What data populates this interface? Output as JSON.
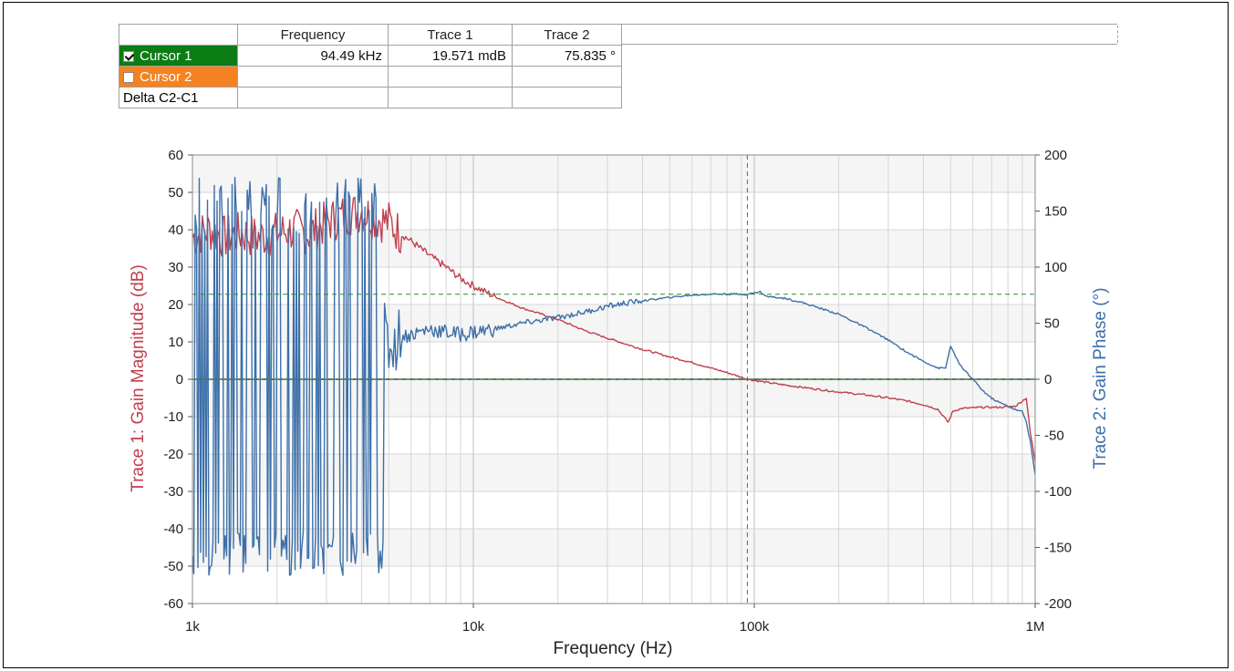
{
  "cursor_table": {
    "headers": [
      "",
      "Frequency",
      "Trace 1",
      "Trace 2"
    ],
    "rows": [
      {
        "label": "Cursor 1",
        "checked": true,
        "color": "#0b7d14",
        "frequency": "94.49 kHz",
        "trace1": "19.571 mdB",
        "trace2": "75.835 °"
      },
      {
        "label": "Cursor 2",
        "checked": false,
        "color": "#f58220",
        "frequency": "",
        "trace1": "",
        "trace2": ""
      },
      {
        "label": "Delta C2-C1",
        "checked": null,
        "color": "",
        "frequency": "",
        "trace1": "",
        "trace2": ""
      }
    ]
  },
  "chart_data": {
    "type": "line",
    "xlabel": "Frequency (Hz)",
    "x_scale": "log",
    "xlim": [
      1000,
      1000000
    ],
    "x_ticks": [
      {
        "v": 1000,
        "label": "1k"
      },
      {
        "v": 10000,
        "label": "10k"
      },
      {
        "v": 100000,
        "label": "100k"
      },
      {
        "v": 1000000,
        "label": "1M"
      }
    ],
    "y_left": {
      "label": "Trace 1: Gain Magnitude (dB)",
      "lim": [
        -60,
        60
      ],
      "ticks": [
        60,
        50,
        40,
        30,
        20,
        10,
        0,
        -10,
        -20,
        -30,
        -40,
        -50,
        -60
      ],
      "color": "#c0404e"
    },
    "y_right": {
      "label": "Trace 2: Gain Phase (°)",
      "lim": [
        -200,
        200
      ],
      "ticks": [
        200,
        150,
        100,
        50,
        0,
        -50,
        -100,
        -150,
        -200
      ],
      "color": "#3d6fa8"
    },
    "grid": true,
    "cursor": {
      "frequency": 94490,
      "magnitude": 0.019571,
      "phase": 75.835
    },
    "series": [
      {
        "name": "Trace 1",
        "axis": "left",
        "color": "#c0404e",
        "x": [
          1000,
          1150,
          1300,
          1500,
          1700,
          2000,
          2300,
          2600,
          3000,
          3500,
          4000,
          4500,
          5000,
          5500,
          6000,
          7000,
          8000,
          9000,
          10000,
          12000,
          15000,
          20000,
          25000,
          30000,
          40000,
          50000,
          60000,
          70000,
          80000,
          94490,
          110000,
          130000,
          150000,
          200000,
          250000,
          300000,
          350000,
          400000,
          450000,
          490000,
          510000,
          550000,
          650000,
          750000,
          850000,
          930000,
          960000,
          1000000
        ],
        "y": [
          38,
          40,
          38,
          39,
          38,
          39,
          40,
          39,
          42,
          44,
          45,
          43,
          42,
          39,
          37,
          33,
          30,
          27,
          25,
          22,
          19,
          16,
          13,
          11,
          8,
          6,
          4.5,
          3,
          1.8,
          0.02,
          -0.8,
          -1.6,
          -2.2,
          -3.4,
          -4.2,
          -5.0,
          -5.8,
          -6.8,
          -8.0,
          -11.5,
          -8.5,
          -7.8,
          -7.5,
          -7.5,
          -7.2,
          -5.0,
          -14,
          -22
        ]
      },
      {
        "name": "Trace 2",
        "axis": "right",
        "color": "#3d6fa8",
        "x": [
          1000,
          3000,
          4500,
          5000,
          5500,
          6000,
          7000,
          8000,
          9000,
          10000,
          12000,
          15000,
          20000,
          25000,
          30000,
          35000,
          40000,
          50000,
          60000,
          70000,
          80000,
          94490,
          105000,
          110000,
          130000,
          150000,
          200000,
          250000,
          300000,
          350000,
          400000,
          450000,
          480000,
          500000,
          520000,
          550000,
          600000,
          650000,
          700000,
          750000,
          800000,
          850000,
          900000,
          930000,
          960000,
          1000000
        ],
        "y": [
          60,
          70,
          55,
          30,
          38,
          40,
          45,
          42,
          40,
          42,
          45,
          50,
          55,
          60,
          65,
          68,
          70,
          73,
          75,
          76,
          76,
          75.8,
          78,
          74,
          72,
          68,
          58,
          46,
          35,
          24,
          16,
          10,
          10,
          30,
          20,
          10,
          0,
          -10,
          -17,
          -21,
          -24,
          -27,
          -29,
          -38,
          -55,
          -85
        ]
      }
    ]
  }
}
